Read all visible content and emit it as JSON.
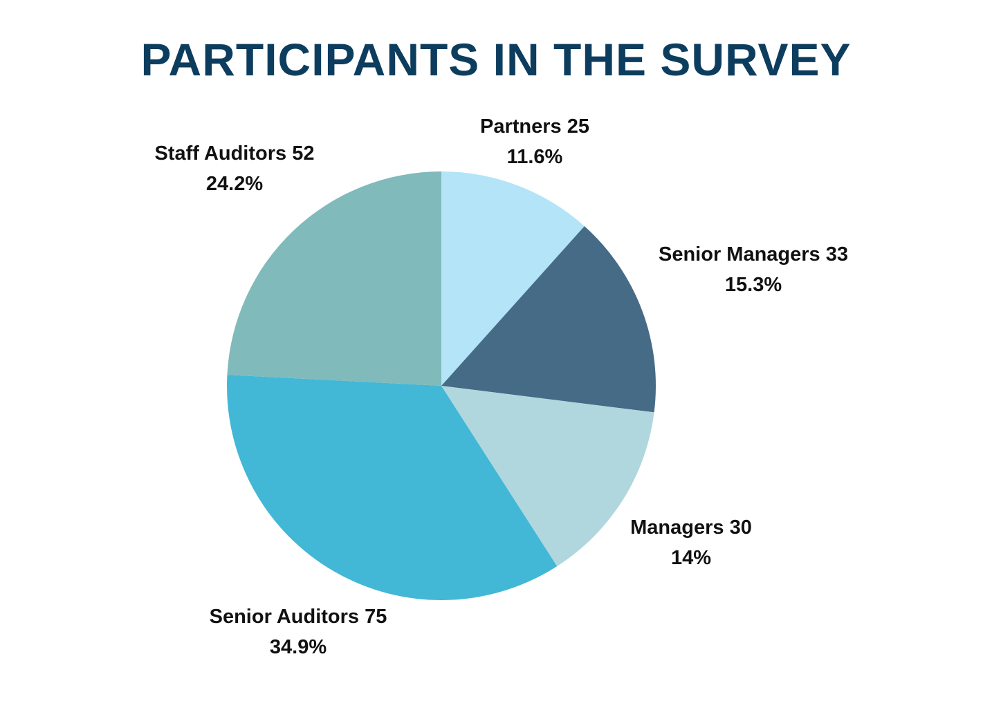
{
  "chart_data": {
    "type": "pie",
    "title": "PARTICIPANTS IN THE SURVEY",
    "slices": [
      {
        "name": "Partners",
        "value": 25,
        "percent_label": "11.6%",
        "color": "#b3e4f8"
      },
      {
        "name": "Senior Managers",
        "value": 33,
        "percent_label": "15.3%",
        "color": "#466b87"
      },
      {
        "name": "Managers",
        "value": 30,
        "percent_label": "14%",
        "color": "#b1d7de"
      },
      {
        "name": "Senior Auditors",
        "value": 75,
        "percent_label": "34.9%",
        "color": "#42b7d6"
      },
      {
        "name": "Staff Auditors",
        "value": 52,
        "percent_label": "24.2%",
        "color": "#80babb"
      }
    ],
    "legend": "none",
    "start_angle": "12 o'clock",
    "direction": "clockwise"
  },
  "colors": {
    "title": "#0d3d5e",
    "label_text": "#111111",
    "background": "#ffffff"
  }
}
